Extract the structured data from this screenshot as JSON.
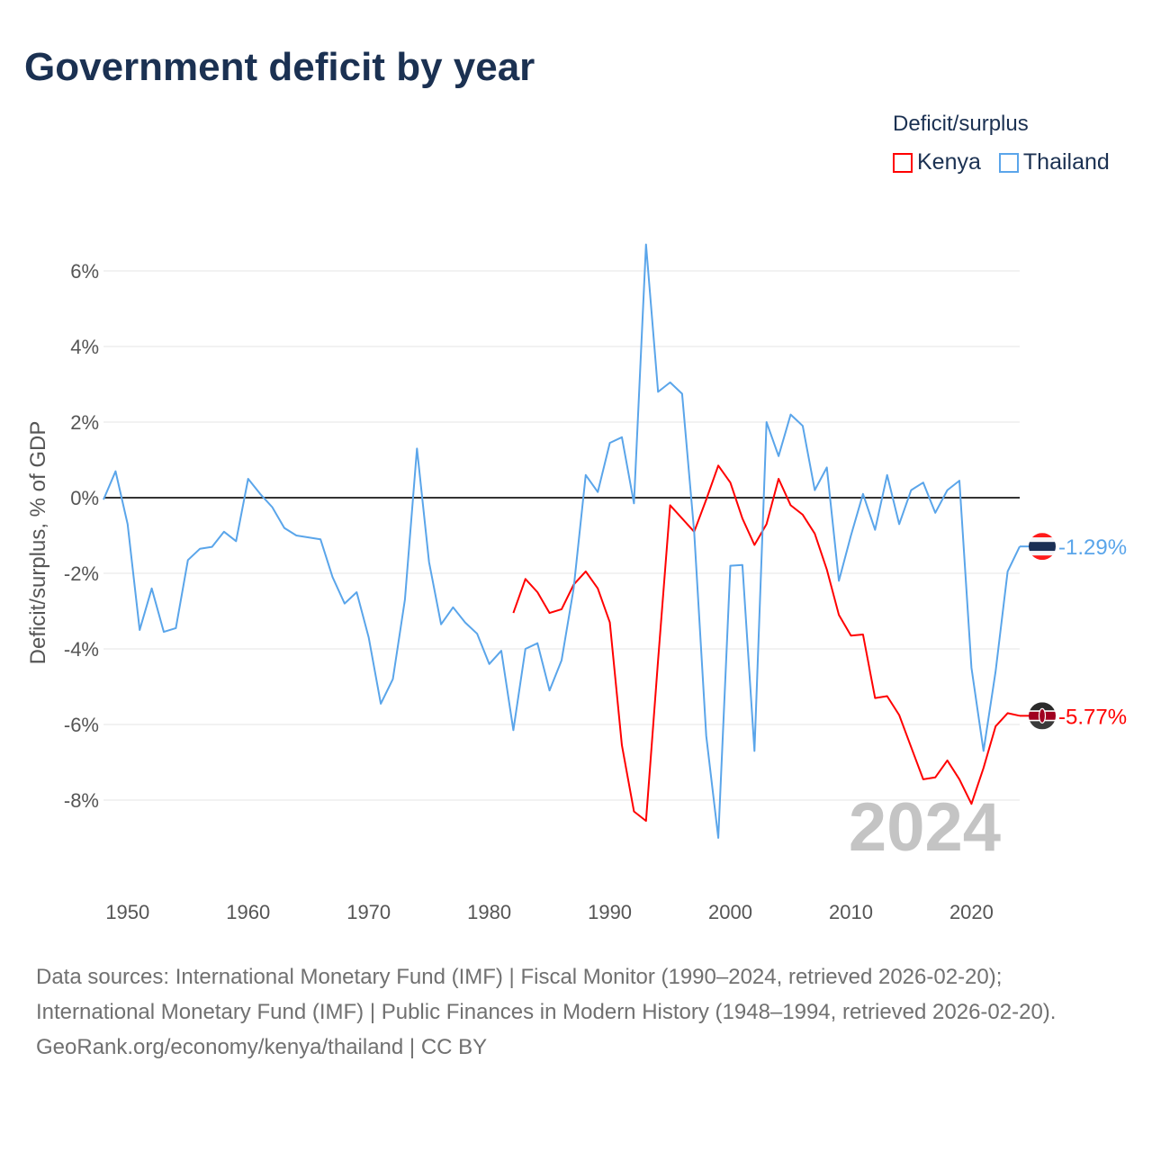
{
  "title": "Government deficit by year",
  "legend": {
    "title": "Deficit/surplus",
    "items": [
      {
        "label": "Kenya",
        "color": "#ff0000"
      },
      {
        "label": "Thailand",
        "color": "#5aa5ea"
      }
    ]
  },
  "watermark_year": "2024",
  "footer": {
    "sources": "Data sources: International Monetary Fund (IMF) | Fiscal Monitor (1990–2024, retrieved 2026-02-20); International Monetary Fund (IMF) | Public Finances in Modern History (1948–1994, retrieved 2026-02-20).",
    "credit": "GeoRank.org/economy/kenya/thailand | CC BY"
  },
  "chart_data": {
    "type": "line",
    "title": "Government deficit by year",
    "xlabel": "",
    "ylabel": "Deficit/surplus, % of GDP",
    "xlim": [
      1948,
      2024
    ],
    "ylim": [
      -10,
      7
    ],
    "yticks": [
      6,
      4,
      2,
      0,
      -2,
      -4,
      -6,
      -8
    ],
    "ytick_labels": [
      "6%",
      "4%",
      "2%",
      "0%",
      "-2%",
      "-4%",
      "-6%",
      "-8%"
    ],
    "xticks": [
      1950,
      1960,
      1970,
      1980,
      1990,
      2000,
      2010,
      2020
    ],
    "xtick_labels": [
      "1950",
      "1960",
      "1970",
      "1980",
      "1990",
      "2000",
      "2010",
      "2020"
    ],
    "grid": true,
    "legend_position": "top-right",
    "series": [
      {
        "name": "Kenya",
        "color": "#ff0000",
        "start_year": 1982,
        "end_label": "-5.77%",
        "values": [
          -3.05,
          -2.15,
          -2.5,
          -3.05,
          -2.95,
          -2.3,
          -1.95,
          -2.4,
          -3.3,
          -6.55,
          -8.3,
          -8.55,
          -4.3,
          -0.2,
          -0.55,
          -0.9,
          -0.05,
          0.85,
          0.4,
          -0.55,
          -1.25,
          -0.7,
          0.5,
          -0.2,
          -0.45,
          -0.95,
          -1.9,
          -3.1,
          -3.65,
          -3.62,
          -5.3,
          -5.25,
          -5.75,
          -6.6,
          -7.45,
          -7.4,
          -6.95,
          -7.45,
          -8.1,
          -7.15,
          -6.05,
          -5.7,
          -5.77
        ]
      },
      {
        "name": "Thailand",
        "color": "#5aa5ea",
        "start_year": 1948,
        "end_label": "-1.29%",
        "values": [
          -0.05,
          0.7,
          -0.7,
          -3.5,
          -2.4,
          -3.55,
          -3.45,
          -1.65,
          -1.35,
          -1.3,
          -0.9,
          -1.15,
          0.5,
          0.1,
          -0.25,
          -0.8,
          -1.0,
          -1.05,
          -1.1,
          -2.1,
          -2.8,
          -2.5,
          -3.7,
          -5.45,
          -4.8,
          -2.7,
          1.3,
          -1.7,
          -3.35,
          -2.9,
          -3.3,
          -3.6,
          -4.4,
          -4.05,
          -6.15,
          -4.0,
          -3.85,
          -5.1,
          -4.3,
          -2.4,
          0.6,
          0.15,
          1.45,
          1.6,
          -0.15,
          6.7,
          2.8,
          3.05,
          2.75,
          -0.9,
          -6.3,
          -9.0,
          -1.8,
          -1.78,
          -6.7,
          2.0,
          1.1,
          2.2,
          1.9,
          0.2,
          0.8,
          -2.2,
          -1.0,
          0.1,
          -0.85,
          0.6,
          -0.7,
          0.2,
          0.4,
          -0.4,
          0.2,
          0.45,
          -4.5,
          -6.7,
          -4.6,
          -1.95,
          -1.29
        ]
      }
    ]
  }
}
